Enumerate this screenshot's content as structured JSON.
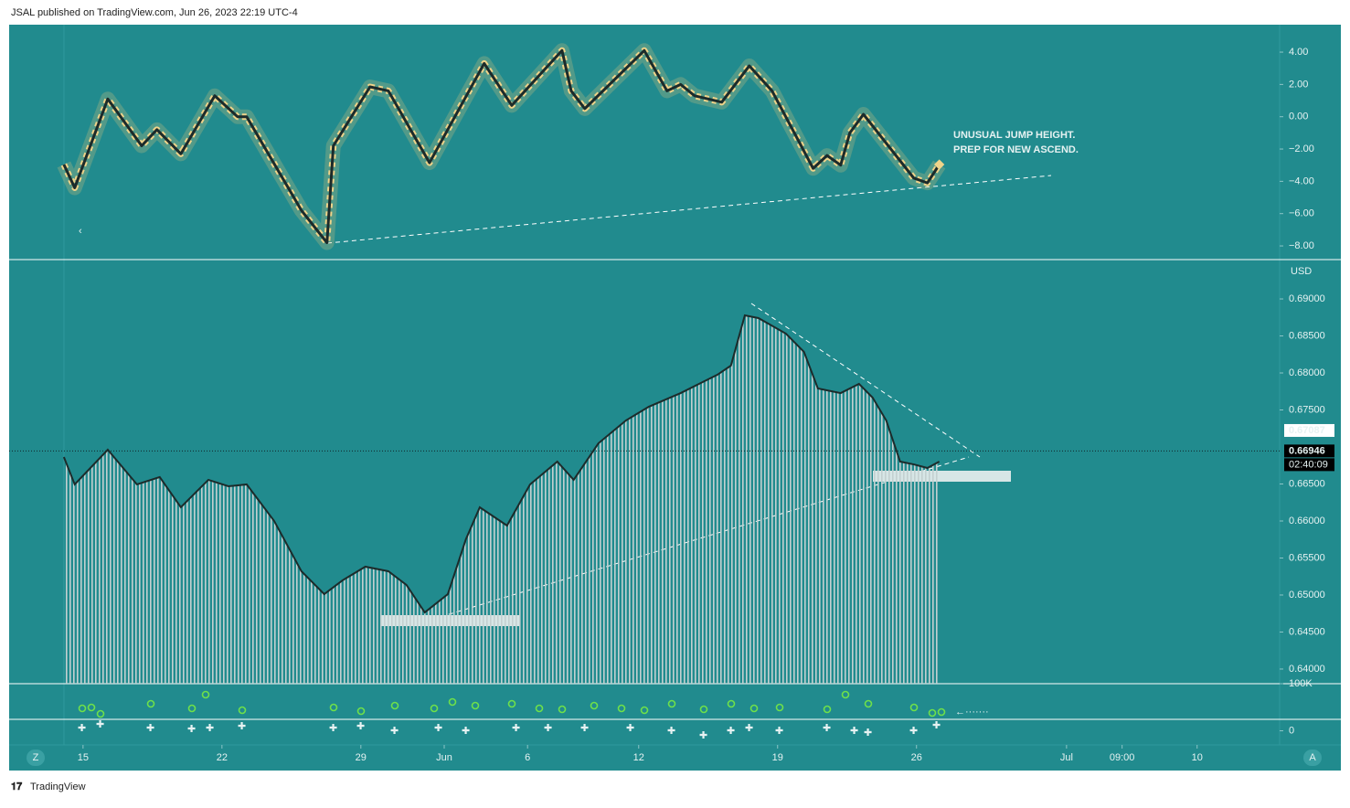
{
  "header": {
    "title": "JSAL published on TradingView.com, Jun 26, 2023 22:19 UTC-4"
  },
  "footer": {
    "brand": "TradingView"
  },
  "chart_data": [
    {
      "type": "line",
      "annotations": [
        "UNUSUAL JUMP HEIGHT.",
        "PREP FOR NEW ASCEND."
      ],
      "ylim": [
        -8.79,
        5.7
      ],
      "yticks": [
        {
          "value": 4,
          "label": "4.00"
        },
        {
          "value": 2,
          "label": "2.00"
        },
        {
          "value": 0,
          "label": "0.00"
        },
        {
          "value": -2,
          "label": "−2.00"
        },
        {
          "value": -4,
          "label": "−4.00"
        },
        {
          "value": -6,
          "label": "−6.00"
        },
        {
          "value": -8,
          "label": "−8.00"
        }
      ],
      "x": [
        -0.69,
        -0.3,
        0.89,
        2.11,
        2.66,
        3.52,
        4.74,
        5.56,
        5.89,
        7.86,
        8.78,
        9.01,
        10.33,
        10.99,
        12.47,
        14.44,
        15.43,
        17.24,
        17.57,
        18.06,
        20.2,
        21.02,
        21.51,
        22.01,
        22.99,
        23.98,
        24.8,
        26.28,
        26.78,
        27.27,
        27.6,
        28.09,
        29.9,
        30.39,
        30.82
      ],
      "series": [
        {
          "color": "#1c2b2b",
          "values": [
            -2.96,
            -4.4,
            1.1,
            -1.8,
            -0.8,
            -2.3,
            1.3,
            0.0,
            0.0,
            -5.8,
            -7.8,
            -1.8,
            1.85,
            1.6,
            -2.85,
            3.3,
            0.7,
            4.1,
            1.6,
            0.5,
            4.1,
            1.6,
            2.0,
            1.3,
            0.9,
            3.15,
            1.6,
            -3.2,
            -2.4,
            -3.0,
            -1.0,
            0.15,
            -3.8,
            -4.1,
            -2.96
          ]
        }
      ]
    },
    {
      "type": "area",
      "currency": "USD",
      "ylim": [
        0.63802,
        0.69519
      ],
      "yticks": [
        {
          "value": 0.69,
          "label": "0.69000"
        },
        {
          "value": 0.685,
          "label": "0.68500"
        },
        {
          "value": 0.68,
          "label": "0.68000"
        },
        {
          "value": 0.675,
          "label": "0.67500"
        },
        {
          "value": 0.665,
          "label": "0.66500"
        },
        {
          "value": 0.66,
          "label": "0.66000"
        },
        {
          "value": 0.655,
          "label": "0.65500"
        },
        {
          "value": 0.65,
          "label": "0.65000"
        },
        {
          "value": 0.645,
          "label": "0.64500"
        },
        {
          "value": 0.64,
          "label": "0.64000"
        }
      ],
      "price_labels": [
        {
          "value": 0.67087,
          "label": "0.67087"
        },
        {
          "value": 0.66946,
          "label": "0.66946"
        }
      ],
      "countdown": "02:40:09",
      "xlim": [
        -2.66,
        43.07
      ],
      "xticks": [
        {
          "value": 0,
          "label": "15"
        },
        {
          "value": 5,
          "label": "22"
        },
        {
          "value": 10,
          "label": "29"
        },
        {
          "value": 13,
          "label": "Jun"
        },
        {
          "value": 16,
          "label": "6"
        },
        {
          "value": 20,
          "label": "12"
        },
        {
          "value": 25,
          "label": "19"
        },
        {
          "value": 30,
          "label": "26"
        },
        {
          "value": 35.4,
          "label": "Jul"
        },
        {
          "value": 37.4,
          "label": "09:00"
        },
        {
          "value": 40.1,
          "label": "10"
        }
      ],
      "x": [
        -0.69,
        -0.3,
        0.89,
        1.94,
        2.76,
        3.52,
        4.51,
        5.23,
        5.89,
        6.88,
        7.86,
        8.68,
        9.34,
        10.16,
        10.99,
        11.64,
        12.3,
        13.13,
        13.78,
        14.28,
        15.26,
        16.09,
        17.07,
        17.66,
        18.55,
        19.54,
        20.36,
        21.51,
        22.17,
        22.83,
        23.32,
        23.82,
        24.31,
        25.3,
        25.95,
        26.45,
        27.27,
        27.93,
        28.42,
        28.91,
        29.41,
        29.9,
        30.39,
        30.82
      ],
      "series": [
        {
          "color": "#c3d0d0",
          "values": [
            0.66864,
            0.66494,
            0.66963,
            0.66494,
            0.66593,
            0.66185,
            0.66556,
            0.66469,
            0.66494,
            0.66,
            0.65321,
            0.65012,
            0.65198,
            0.65383,
            0.65321,
            0.65136,
            0.64765,
            0.65012,
            0.65753,
            0.66185,
            0.65938,
            0.66494,
            0.66802,
            0.66556,
            0.67049,
            0.67358,
            0.67543,
            0.67728,
            0.67852,
            0.67975,
            0.68099,
            0.68778,
            0.68741,
            0.68531,
            0.68284,
            0.6779,
            0.67728,
            0.67852,
            0.67667,
            0.67358,
            0.66802,
            0.66765,
            0.66716,
            0.66802
          ]
        }
      ]
    },
    {
      "type": "indicator",
      "ylim": [
        -30000,
        100000
      ],
      "yticks": [
        {
          "value": 0,
          "label": "0"
        },
        {
          "value": 100000,
          "label": "100K"
        }
      ]
    }
  ]
}
